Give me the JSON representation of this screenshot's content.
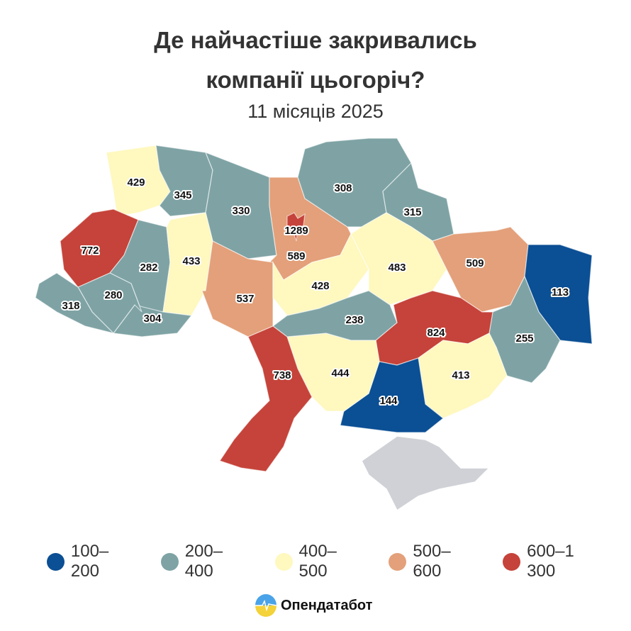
{
  "header": {
    "title_line1": "Де найчастіше закривались",
    "title_line2": "компанії цьогоріч?",
    "subtitle": "11 місяців 2025"
  },
  "legend": [
    {
      "label": "100–200",
      "min": 100,
      "max": 200,
      "color": "#0b4f94"
    },
    {
      "label": "200–400",
      "min": 200,
      "max": 400,
      "color": "#7fa3a5"
    },
    {
      "label": "400–500",
      "min": 400,
      "max": 500,
      "color": "#fff8bf"
    },
    {
      "label": "500–600",
      "min": 500,
      "max": 600,
      "color": "#e3a07a"
    },
    {
      "label": "600–1 300",
      "min": 600,
      "max": 1300,
      "color": "#c5433a"
    }
  ],
  "regions": [
    {
      "value": 429
    },
    {
      "value": 345
    },
    {
      "value": 330
    },
    {
      "value": 589
    },
    {
      "value": 308
    },
    {
      "value": 315
    },
    {
      "value": 772
    },
    {
      "value": 282
    },
    {
      "value": 433
    },
    {
      "value": 537
    },
    {
      "value": 428
    },
    {
      "value": 483
    },
    {
      "value": 509
    },
    {
      "value": 113
    },
    {
      "value": 255
    },
    {
      "value": 824
    },
    {
      "value": 413
    },
    {
      "value": 144
    },
    {
      "value": 444
    },
    {
      "value": 238
    },
    {
      "value": 738
    },
    {
      "value": 304
    },
    {
      "value": 280
    },
    {
      "value": 318
    },
    {
      "value": 1289
    }
  ],
  "no_data_color": "#cfd1d6",
  "brand": {
    "name": "Опендатабот"
  }
}
